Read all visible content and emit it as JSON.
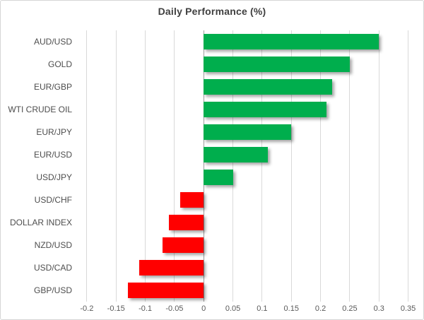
{
  "chart_data": {
    "type": "bar",
    "orientation": "horizontal",
    "title": "Daily Performance (%)",
    "categories": [
      "AUD/USD",
      "GOLD",
      "EUR/GBP",
      "WTI CRUDE OIL",
      "EUR/JPY",
      "EUR/USD",
      "USD/JPY",
      "USD/CHF",
      "DOLLAR INDEX",
      "NZD/USD",
      "USD/CAD",
      "GBP/USD"
    ],
    "values": [
      0.3,
      0.25,
      0.22,
      0.21,
      0.15,
      0.11,
      0.05,
      -0.04,
      -0.06,
      -0.07,
      -0.11,
      -0.13
    ],
    "xticks": [
      -0.2,
      -0.15,
      -0.1,
      -0.05,
      0,
      0.05,
      0.1,
      0.15,
      0.2,
      0.25,
      0.3,
      0.35
    ],
    "xtick_labels": [
      "-0.2",
      "-0.15",
      "-0.1",
      "-0.05",
      "0",
      "0.05",
      "0.1",
      "0.15",
      "0.2",
      "0.25",
      "0.3",
      "0.35"
    ],
    "xlim": [
      -0.218,
      0.365
    ],
    "xlabel": "",
    "ylabel": "",
    "grid": true,
    "legend": false,
    "colors": {
      "positive": "#00AE4D",
      "negative": "#FF0000",
      "gridline": "#D9D9D9",
      "zero_axis": "#9E9E9E",
      "title_text": "#404040",
      "category_text": "#4D4D4D",
      "tick_text": "#595959",
      "chart_border": "#D6D6D6",
      "background": "#FFFFFF"
    }
  }
}
